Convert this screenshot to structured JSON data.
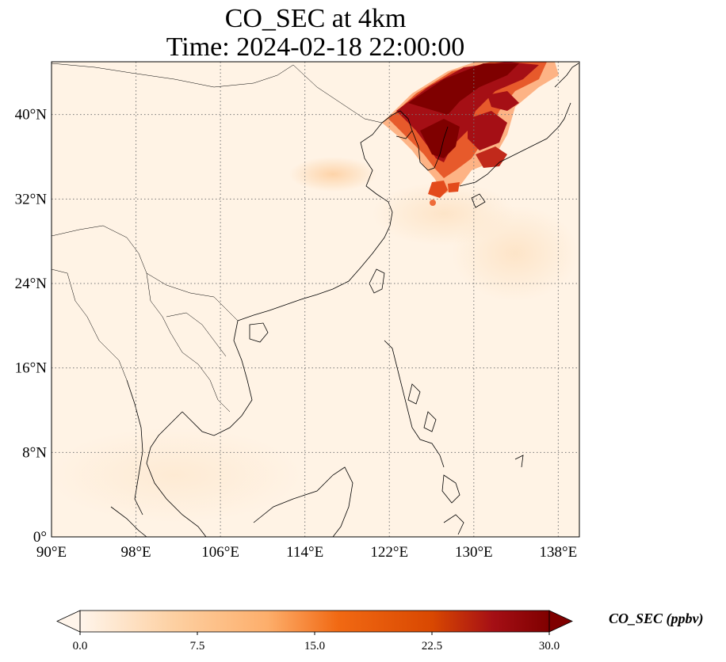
{
  "title_line1": "CO_SEC at 4km",
  "title_line2": "Time: 2024-02-18 22:00:00",
  "map": {
    "lon_range": [
      90,
      140
    ],
    "lat_range": [
      0,
      45
    ],
    "lon_ticks": [
      {
        "value": 90,
        "label": "90°E"
      },
      {
        "value": 98,
        "label": "98°E"
      },
      {
        "value": 106,
        "label": "106°E"
      },
      {
        "value": 114,
        "label": "114°E"
      },
      {
        "value": 122,
        "label": "122°E"
      },
      {
        "value": 130,
        "label": "130°E"
      },
      {
        "value": 138,
        "label": "138°E"
      }
    ],
    "lat_ticks": [
      {
        "value": 0,
        "label": "0°"
      },
      {
        "value": 8,
        "label": "8°N"
      },
      {
        "value": 16,
        "label": "16°N"
      },
      {
        "value": 24,
        "label": "24°N"
      },
      {
        "value": 32,
        "label": "32°N"
      },
      {
        "value": 40,
        "label": "40°N"
      }
    ],
    "gridlines": "dotted",
    "background_color": "#fff5eb",
    "coastline_color": "#000000"
  },
  "colorbar": {
    "label": "CO_SEC (ppbv)",
    "min": 0.0,
    "max": 30.0,
    "ticks": [
      {
        "value": 0.0,
        "label": "0.0"
      },
      {
        "value": 7.5,
        "label": "7.5"
      },
      {
        "value": 15.0,
        "label": "15.0"
      },
      {
        "value": 22.5,
        "label": "22.5"
      },
      {
        "value": 30.0,
        "label": "30.0"
      }
    ],
    "colormap": "OrRd",
    "stops": [
      "#fff5eb",
      "#fdd0a2",
      "#fd8d3c",
      "#d94801",
      "#a50f15",
      "#7f0000"
    ],
    "extend": "both"
  }
}
